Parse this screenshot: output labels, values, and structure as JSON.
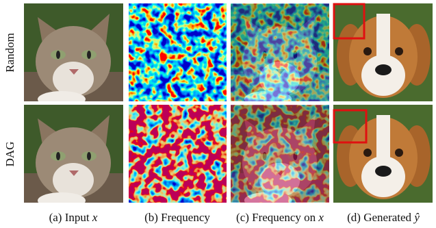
{
  "row_labels": [
    "Random",
    "DAG"
  ],
  "captions": [
    {
      "label": "(a) Input",
      "symbol": "x"
    },
    {
      "label": "(b) Frequency"
    },
    {
      "label": "(c) Frequency on",
      "symbol": "x"
    },
    {
      "label": "(d) Generated",
      "symbol": "ŷ"
    }
  ]
}
